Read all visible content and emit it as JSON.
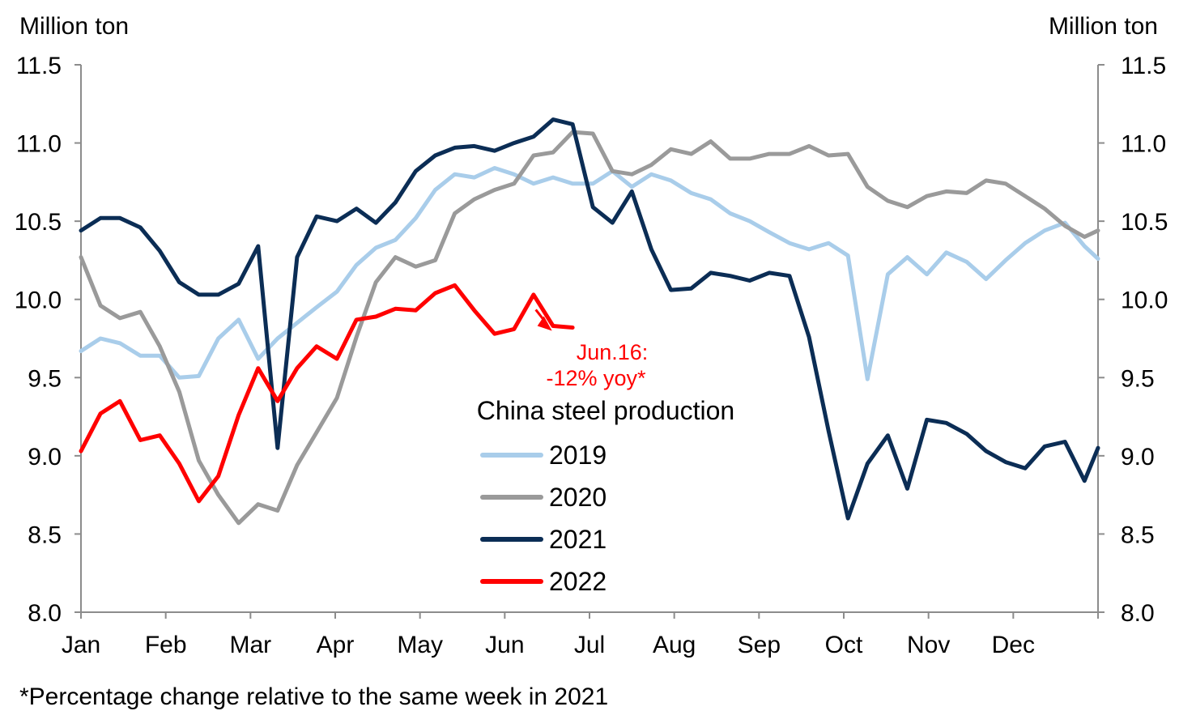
{
  "chart_data": {
    "type": "line",
    "title": "",
    "left_axis_label": "Million ton",
    "right_axis_label": "Million ton",
    "ylim": [
      8.0,
      11.5
    ],
    "yticks": [
      "11.5",
      "11.0",
      "10.5",
      "10.0",
      "9.5",
      "9.0",
      "8.5",
      "8.0"
    ],
    "ytick_values": [
      11.5,
      11.0,
      10.5,
      10.0,
      9.5,
      9.0,
      8.5,
      8.0
    ],
    "xlim": [
      0,
      12
    ],
    "xtick_labels": [
      "Jan",
      "Feb",
      "Mar",
      "Apr",
      "May",
      "Jun",
      "Jul",
      "Aug",
      "Sep",
      "Oct",
      "Nov",
      "Dec"
    ],
    "grid": false,
    "legend": {
      "title": "China steel production",
      "placement": "center",
      "entries": [
        "2019",
        "2020",
        "2021",
        "2022"
      ]
    },
    "annotation": {
      "line1": "Jun.16:",
      "line2": "-12% yoy*",
      "x": 5.5,
      "y": 9.82
    },
    "footnote": "*Percentage change relative to the same week in 2021",
    "series": [
      {
        "name": "2019",
        "color": "#a9cdea",
        "x": [
          0,
          0.23,
          0.46,
          0.7,
          0.93,
          1.16,
          1.39,
          1.62,
          1.86,
          2.09,
          2.32,
          2.55,
          2.78,
          3.02,
          3.25,
          3.48,
          3.71,
          3.95,
          4.18,
          4.41,
          4.64,
          4.88,
          5.11,
          5.34,
          5.57,
          5.8,
          6.04,
          6.27,
          6.5,
          6.73,
          6.96,
          7.2,
          7.43,
          7.66,
          7.89,
          8.12,
          8.36,
          8.59,
          8.82,
          9.05,
          9.28,
          9.52,
          9.75,
          9.98,
          10.21,
          10.45,
          10.68,
          10.91,
          11.14,
          11.37,
          11.61,
          11.84,
          12.0
        ],
        "values": [
          9.67,
          9.75,
          9.72,
          9.64,
          9.64,
          9.5,
          9.51,
          9.75,
          9.87,
          9.62,
          9.75,
          9.85,
          9.95,
          10.05,
          10.22,
          10.33,
          10.38,
          10.52,
          10.7,
          10.8,
          10.78,
          10.84,
          10.8,
          10.74,
          10.78,
          10.74,
          10.74,
          10.82,
          10.72,
          10.8,
          10.76,
          10.68,
          10.64,
          10.55,
          10.5,
          10.43,
          10.36,
          10.32,
          10.36,
          10.28,
          9.49,
          10.16,
          10.27,
          10.16,
          10.3,
          10.24,
          10.13,
          10.25,
          10.36,
          10.44,
          10.49,
          10.34,
          10.26
        ]
      },
      {
        "name": "2020",
        "color": "#9a9a9a",
        "x": [
          0,
          0.23,
          0.46,
          0.7,
          0.93,
          1.16,
          1.39,
          1.62,
          1.86,
          2.09,
          2.32,
          2.55,
          2.78,
          3.02,
          3.25,
          3.48,
          3.71,
          3.95,
          4.18,
          4.41,
          4.64,
          4.88,
          5.11,
          5.34,
          5.57,
          5.8,
          6.04,
          6.27,
          6.5,
          6.73,
          6.96,
          7.2,
          7.43,
          7.66,
          7.89,
          8.12,
          8.36,
          8.59,
          8.82,
          9.05,
          9.28,
          9.52,
          9.75,
          9.98,
          10.21,
          10.45,
          10.68,
          10.91,
          11.14,
          11.37,
          11.61,
          11.84,
          12.0
        ],
        "values": [
          10.27,
          9.96,
          9.88,
          9.92,
          9.7,
          9.41,
          8.97,
          8.75,
          8.57,
          8.69,
          8.65,
          8.94,
          9.15,
          9.37,
          9.76,
          10.11,
          10.27,
          10.21,
          10.25,
          10.55,
          10.64,
          10.7,
          10.74,
          10.92,
          10.94,
          11.07,
          11.06,
          10.82,
          10.8,
          10.86,
          10.96,
          10.93,
          11.01,
          10.9,
          10.9,
          10.93,
          10.93,
          10.98,
          10.92,
          10.93,
          10.72,
          10.63,
          10.59,
          10.66,
          10.69,
          10.68,
          10.76,
          10.74,
          10.66,
          10.58,
          10.47,
          10.4,
          10.44
        ]
      },
      {
        "name": "2021",
        "color": "#0b2d55",
        "x": [
          0,
          0.23,
          0.46,
          0.7,
          0.93,
          1.16,
          1.39,
          1.62,
          1.86,
          2.09,
          2.32,
          2.55,
          2.78,
          3.02,
          3.25,
          3.48,
          3.71,
          3.95,
          4.18,
          4.41,
          4.64,
          4.88,
          5.11,
          5.34,
          5.57,
          5.8,
          6.04,
          6.27,
          6.5,
          6.73,
          6.96,
          7.2,
          7.43,
          7.66,
          7.89,
          8.12,
          8.36,
          8.59,
          8.82,
          9.05,
          9.28,
          9.52,
          9.75,
          9.98,
          10.21,
          10.45,
          10.68,
          10.91,
          11.14,
          11.37,
          11.61,
          11.84,
          12.0
        ],
        "values": [
          10.44,
          10.52,
          10.52,
          10.46,
          10.31,
          10.11,
          10.03,
          10.03,
          10.1,
          10.34,
          9.05,
          10.27,
          10.53,
          10.5,
          10.58,
          10.49,
          10.62,
          10.82,
          10.92,
          10.97,
          10.98,
          10.95,
          11.0,
          11.04,
          11.15,
          11.12,
          10.59,
          10.49,
          10.69,
          10.32,
          10.06,
          10.07,
          10.17,
          10.15,
          10.12,
          10.17,
          10.15,
          9.76,
          9.16,
          8.6,
          8.95,
          9.13,
          8.79,
          9.23,
          9.21,
          9.14,
          9.03,
          8.96,
          8.92,
          9.06,
          9.09,
          8.84,
          9.05
        ]
      },
      {
        "name": "2022",
        "color": "#ff0000",
        "x": [
          0,
          0.23,
          0.46,
          0.7,
          0.93,
          1.16,
          1.39,
          1.62,
          1.86,
          2.09,
          2.32,
          2.55,
          2.78,
          3.02,
          3.25,
          3.48,
          3.71,
          3.95,
          4.18,
          4.41,
          4.64,
          4.88,
          5.11,
          5.34,
          5.57,
          5.8
        ],
        "values": [
          9.03,
          9.27,
          9.35,
          9.1,
          9.13,
          8.95,
          8.71,
          8.87,
          9.26,
          9.56,
          9.35,
          9.56,
          9.7,
          9.62,
          9.87,
          9.89,
          9.94,
          9.93,
          10.04,
          10.09,
          9.93,
          9.78,
          9.81,
          10.03,
          9.83,
          9.82
        ]
      }
    ]
  }
}
